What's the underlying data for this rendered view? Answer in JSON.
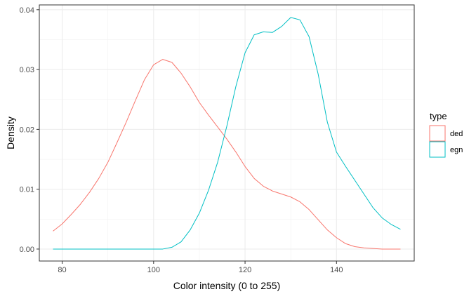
{
  "chart_data": {
    "type": "line",
    "xlabel": "Color intensity (0 to 255)",
    "ylabel": "Density",
    "xlim": [
      75,
      157
    ],
    "ylim": [
      -0.002,
      0.0408
    ],
    "x_ticks": [
      80,
      100,
      120,
      140
    ],
    "x_tick_labels": [
      "80",
      "100",
      "120",
      "140"
    ],
    "y_ticks": [
      0,
      0.01,
      0.02,
      0.03,
      0.04
    ],
    "y_tick_labels": [
      "0.00",
      "0.01",
      "0.02",
      "0.03",
      "0.04"
    ],
    "grid": true,
    "legend": {
      "title": "type",
      "position": "right"
    },
    "series": [
      {
        "name": "ded",
        "color": "#F8766D",
        "x": [
          78,
          80,
          82,
          84,
          86,
          88,
          90,
          92,
          94,
          96,
          98,
          100,
          102,
          104,
          106,
          108,
          110,
          112,
          114,
          116,
          118,
          120,
          122,
          124,
          126,
          128,
          130,
          132,
          134,
          136,
          138,
          140,
          142,
          144,
          146,
          148,
          150,
          152,
          154
        ],
        "y": [
          0.003,
          0.0042,
          0.0058,
          0.0075,
          0.0095,
          0.0118,
          0.0145,
          0.0178,
          0.0212,
          0.0248,
          0.0283,
          0.0308,
          0.0317,
          0.0312,
          0.0294,
          0.0271,
          0.0245,
          0.0224,
          0.0204,
          0.0184,
          0.0162,
          0.0138,
          0.0118,
          0.0105,
          0.0097,
          0.0092,
          0.0087,
          0.0079,
          0.0066,
          0.0049,
          0.0032,
          0.0019,
          0.0009,
          0.0004,
          0.0002,
          0.0001,
          0.0,
          0.0,
          0.0
        ]
      },
      {
        "name": "egn",
        "color": "#00BFC4",
        "x": [
          78,
          80,
          84,
          88,
          92,
          96,
          100,
          102,
          104,
          106,
          108,
          110,
          112,
          114,
          116,
          118,
          120,
          122,
          124,
          126,
          128,
          130,
          132,
          134,
          136,
          138,
          140,
          142,
          144,
          146,
          148,
          150,
          152,
          154
        ],
        "y": [
          0.0,
          0.0,
          0.0,
          0.0,
          0.0,
          0.0,
          0.0,
          0.0,
          0.0003,
          0.0012,
          0.0032,
          0.006,
          0.0098,
          0.0145,
          0.0205,
          0.0272,
          0.0328,
          0.0358,
          0.0363,
          0.0362,
          0.0372,
          0.0387,
          0.0383,
          0.0355,
          0.0292,
          0.0212,
          0.0162,
          0.0138,
          0.0115,
          0.0092,
          0.0069,
          0.0052,
          0.0041,
          0.0033
        ]
      }
    ]
  }
}
